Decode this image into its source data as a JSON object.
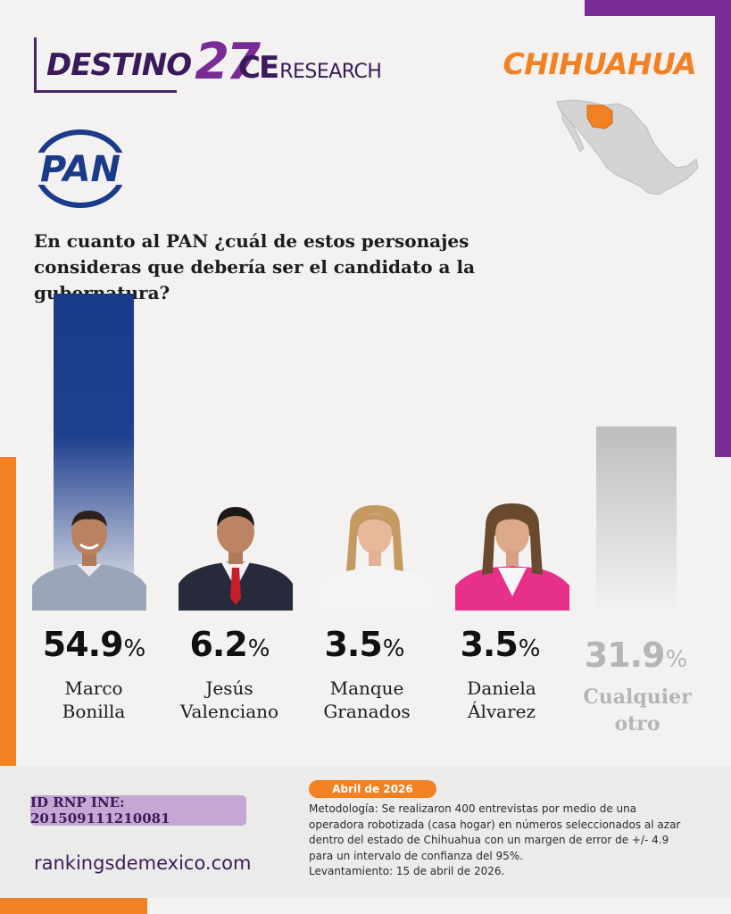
{
  "header": {
    "brand_word": "DESTINO",
    "brand_number": "27",
    "partner_bold": "CE",
    "partner_light": "RESEARCH",
    "state": "CHIHUAHUA"
  },
  "party_logo_text": "PAN",
  "question": "En cuanto al PAN ¿cuál de estos personajes consideras que debería ser el candidato a la gubernatura?",
  "colors": {
    "pan_blue": "#1a3a8a",
    "other_gray": "#bdbdbd",
    "purple": "#7a2c96",
    "orange": "#f28123"
  },
  "percent_symbol": "%",
  "chart_data": {
    "type": "bar",
    "categories": [
      "Marco Bonilla",
      "Jesús Valenciano",
      "Manque Granados",
      "Daniela Álvarez",
      "Cualquier otro"
    ],
    "values": [
      54.9,
      6.2,
      3.5,
      3.5,
      31.9
    ],
    "value_labels": [
      "54.9",
      "6.2",
      "3.5",
      "3.5",
      "31.9"
    ],
    "name_lines": [
      [
        "Marco",
        "Bonilla"
      ],
      [
        "Jesús",
        "Valenciano"
      ],
      [
        "Manque",
        "Granados"
      ],
      [
        "Daniela",
        "Álvarez"
      ],
      [
        "Cualquier",
        "otro"
      ]
    ],
    "title": "",
    "xlabel": "",
    "ylabel": "",
    "ylim": [
      0,
      54.9
    ],
    "grid": false,
    "bar_colors": [
      "#1a3a8a",
      "#1a3a8a",
      "#1a3a8a",
      "#1a3a8a",
      "#bdbdbd"
    ]
  },
  "footer": {
    "rnp": "ID RNP INE: 201509111210081",
    "site": "rankingsdemexico.com",
    "date": "Abril de 2026",
    "methodology": "Metodología: Se realizaron 400 entrevistas por medio de una operadora robotizada (casa hogar) en números seleccionados al azar dentro del estado de Chihuahua con un margen de error de +/- 4.9 para un intervalo de confianza del 95%.",
    "fieldwork": "Levantamiento: 15 de abril de 2026."
  }
}
